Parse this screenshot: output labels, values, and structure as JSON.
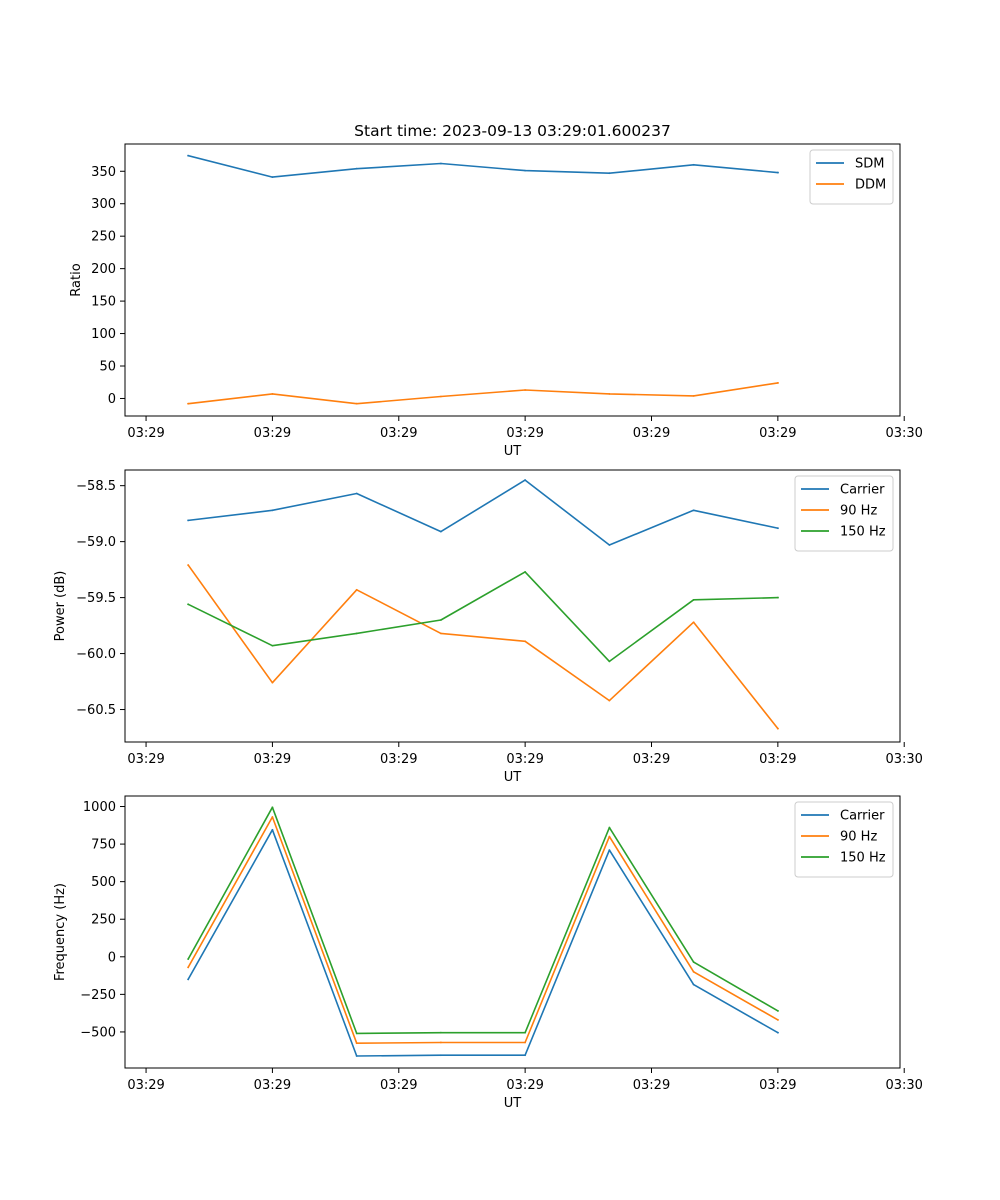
{
  "figure": {
    "title": "Start time: 2023-09-13 03:29:01.600237"
  },
  "colors": {
    "blue": "#1f77b4",
    "orange": "#ff7f0e",
    "green": "#2ca02c"
  },
  "chart_data": [
    {
      "type": "line",
      "title": "Start time: 2023-09-13 03:29:01.600237",
      "xlabel": "UT",
      "ylabel": "Ratio",
      "x": [
        0.5,
        1.5,
        2.5,
        3.5,
        4.5,
        5.5,
        6.5,
        7.5
      ],
      "xlim": [
        -0.25,
        8.95
      ],
      "xticks": [
        0,
        1.5,
        3,
        4.5,
        6,
        7.5,
        9
      ],
      "xtick_labels": [
        "03:29",
        "03:29",
        "03:29",
        "03:29",
        "03:29",
        "03:29",
        "03:30"
      ],
      "ylim": [
        -27,
        392
      ],
      "yticks": [
        0,
        50,
        100,
        150,
        200,
        250,
        300,
        350
      ],
      "ytick_labels": [
        "0",
        "50",
        "100",
        "150",
        "200",
        "250",
        "300",
        "350"
      ],
      "legend": "top-right",
      "series": [
        {
          "name": "SDM",
          "color": "#1f77b4",
          "values": [
            374,
            341,
            354,
            362,
            351,
            347,
            360,
            348
          ]
        },
        {
          "name": "DDM",
          "color": "#ff7f0e",
          "values": [
            -8,
            7,
            -8,
            3,
            13,
            7,
            4,
            24
          ]
        }
      ]
    },
    {
      "type": "line",
      "title": "",
      "xlabel": "UT",
      "ylabel": "Power (dB)",
      "x": [
        0.5,
        1.5,
        2.5,
        3.5,
        4.5,
        5.5,
        6.5,
        7.5
      ],
      "xlim": [
        -0.25,
        8.95
      ],
      "xticks": [
        0,
        1.5,
        3,
        4.5,
        6,
        7.5,
        9
      ],
      "xtick_labels": [
        "03:29",
        "03:29",
        "03:29",
        "03:29",
        "03:29",
        "03:29",
        "03:30"
      ],
      "ylim": [
        -60.79,
        -58.36
      ],
      "yticks": [
        -60.5,
        -60.0,
        -59.5,
        -59.0,
        -58.5
      ],
      "ytick_labels": [
        "−60.5",
        "−60.0",
        "−59.5",
        "−59.0",
        "−58.5"
      ],
      "legend": "top-right",
      "series": [
        {
          "name": "Carrier",
          "color": "#1f77b4",
          "values": [
            -58.81,
            -58.72,
            -58.57,
            -58.91,
            -58.45,
            -59.03,
            -58.72,
            -58.88
          ]
        },
        {
          "name": "90 Hz",
          "color": "#ff7f0e",
          "values": [
            -59.21,
            -60.26,
            -59.43,
            -59.82,
            -59.89,
            -60.42,
            -59.72,
            -60.67
          ]
        },
        {
          "name": "150 Hz",
          "color": "#2ca02c",
          "values": [
            -59.56,
            -59.93,
            -59.82,
            -59.7,
            -59.27,
            -60.07,
            -59.52,
            -59.5
          ]
        }
      ]
    },
    {
      "type": "line",
      "title": "",
      "xlabel": "UT",
      "ylabel": "Frequency (Hz)",
      "x": [
        0.5,
        1.5,
        2.5,
        3.5,
        4.5,
        5.5,
        6.5,
        7.5
      ],
      "xlim": [
        -0.25,
        8.95
      ],
      "xticks": [
        0,
        1.5,
        3,
        4.5,
        6,
        7.5,
        9
      ],
      "xtick_labels": [
        "03:29",
        "03:29",
        "03:29",
        "03:29",
        "03:29",
        "03:29",
        "03:30"
      ],
      "ylim": [
        -740,
        1070
      ],
      "yticks": [
        -500,
        -250,
        0,
        250,
        500,
        750,
        1000
      ],
      "ytick_labels": [
        "−500",
        "−250",
        "0",
        "250",
        "500",
        "750",
        "1000"
      ],
      "legend": "top-right",
      "series": [
        {
          "name": "Carrier",
          "color": "#1f77b4",
          "values": [
            -150,
            845,
            -660,
            -655,
            -655,
            710,
            -185,
            -505
          ]
        },
        {
          "name": "90 Hz",
          "color": "#ff7f0e",
          "values": [
            -70,
            930,
            -575,
            -570,
            -570,
            800,
            -100,
            -420
          ]
        },
        {
          "name": "150 Hz",
          "color": "#2ca02c",
          "values": [
            -15,
            995,
            -510,
            -505,
            -505,
            860,
            -35,
            -360
          ]
        }
      ]
    }
  ]
}
